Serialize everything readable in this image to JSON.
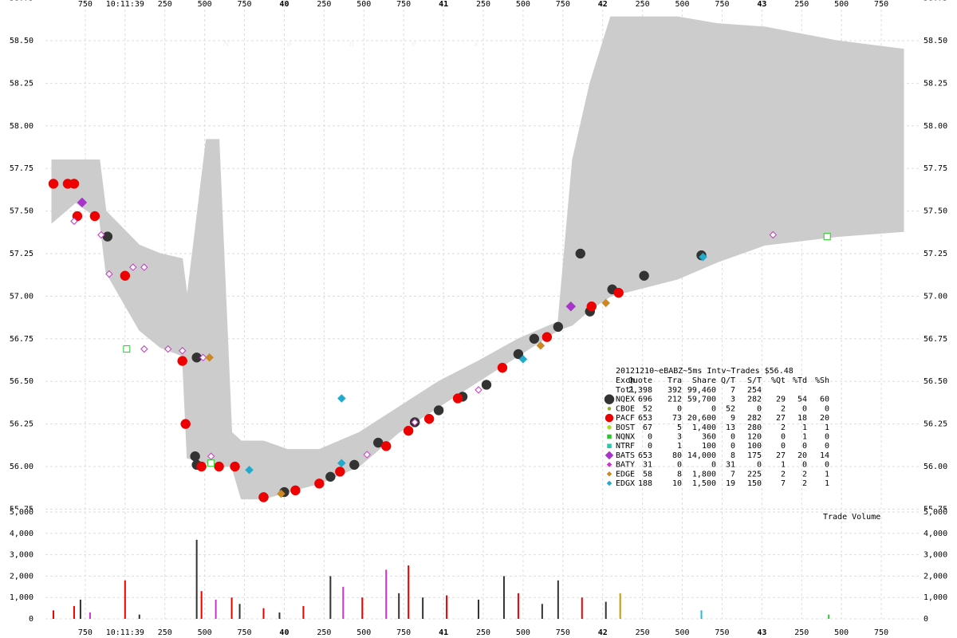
{
  "chart_data": [
    {
      "type": "scatter",
      "watermark": "Nanex",
      "xlim": [
        38.5,
        44.0
      ],
      "xticks": [
        {
          "value": 38.75,
          "label": "750"
        },
        {
          "value": 39,
          "label": "10:11:39"
        },
        {
          "value": 39.25,
          "label": "250"
        },
        {
          "value": 39.5,
          "label": "500"
        },
        {
          "value": 39.75,
          "label": "750"
        },
        40,
        {
          "value": 40.25,
          "label": "250"
        },
        {
          "value": 40.5,
          "label": "500"
        },
        {
          "value": 40.75,
          "label": "750"
        },
        41,
        {
          "value": 41.25,
          "label": "250"
        },
        {
          "value": 41.5,
          "label": "500"
        },
        {
          "value": 41.75,
          "label": "750"
        },
        42,
        {
          "value": 42.25,
          "label": "250"
        },
        {
          "value": 42.5,
          "label": "500"
        },
        {
          "value": 42.75,
          "label": "750"
        },
        43,
        {
          "value": 43.25,
          "label": "250"
        },
        {
          "value": 43.5,
          "label": "500"
        },
        {
          "value": 43.75,
          "label": "750"
        }
      ],
      "ylim": [
        55.75,
        58.75
      ],
      "yticks": [
        {
          "value": 55.75,
          "label": "55.75"
        },
        {
          "value": 56,
          "label": "56.00"
        },
        56.25,
        {
          "value": 56.5,
          "label": "56.50"
        },
        56.75,
        {
          "value": 57,
          "label": "57.00"
        },
        57.25,
        {
          "value": 57.5,
          "label": "57.50"
        },
        57.75,
        {
          "value": 58,
          "label": "58.00"
        },
        58.25,
        {
          "value": 58.5,
          "label": "58.50"
        },
        58.75
      ],
      "grid": true,
      "spread": {
        "color": "#cccccc",
        "x": [
          38.54,
          38.69,
          38.84,
          38.88,
          39.09,
          39.22,
          39.36,
          39.39,
          39.51,
          39.59,
          39.67,
          39.73,
          39.87,
          40.02,
          40.22,
          40.47,
          40.72,
          40.97,
          41.22,
          41.47,
          41.72,
          41.81,
          41.92,
          42.05,
          42.47,
          42.72,
          43.02,
          43.47,
          43.89
        ],
        "ask": [
          57.8,
          57.8,
          57.8,
          57.5,
          57.3,
          57.25,
          57.22,
          57.0,
          57.92,
          57.92,
          56.2,
          56.15,
          56.15,
          56.1,
          56.1,
          56.2,
          56.35,
          56.5,
          56.62,
          56.75,
          56.85,
          57.8,
          58.25,
          58.64,
          58.64,
          58.6,
          58.58,
          58.5,
          58.45
        ],
        "bid": [
          57.43,
          57.55,
          57.45,
          57.14,
          56.8,
          56.7,
          56.65,
          56.05,
          56.02,
          56.0,
          56.0,
          55.81,
          55.81,
          55.85,
          55.9,
          56.0,
          56.2,
          56.35,
          56.5,
          56.65,
          56.8,
          56.83,
          56.92,
          57.0,
          57.1,
          57.2,
          57.3,
          57.35,
          57.38
        ]
      },
      "series": [
        {
          "name": "NQEX",
          "color": "#333333",
          "shape": "circle",
          "size": 6,
          "x": [
            38.89,
            39.45,
            39.44,
            39.45,
            39.87,
            40.0,
            40.29,
            40.44,
            40.59,
            40.82,
            40.97,
            41.12,
            41.27,
            41.47,
            41.57,
            41.72,
            41.86,
            41.92,
            42.06,
            42.26,
            42.62
          ],
          "values": [
            57.35,
            56.64,
            56.06,
            56.01,
            55.82,
            55.85,
            55.94,
            56.01,
            56.14,
            56.26,
            56.33,
            56.41,
            56.48,
            56.66,
            56.75,
            56.82,
            57.25,
            56.91,
            57.04,
            57.12,
            57.24
          ]
        },
        {
          "name": "PACF",
          "color": "#ee0000",
          "shape": "circle",
          "size": 6,
          "x": [
            38.55,
            38.64,
            38.68,
            38.7,
            38.81,
            39.0,
            39.36,
            39.38,
            39.48,
            39.59,
            39.69,
            39.87,
            40.07,
            40.22,
            40.35,
            40.64,
            40.78,
            40.91,
            41.09,
            41.37,
            41.65,
            41.93,
            42.1
          ],
          "values": [
            57.66,
            57.66,
            57.66,
            57.47,
            57.47,
            57.12,
            56.62,
            56.25,
            56.0,
            56.0,
            56.0,
            55.82,
            55.86,
            55.9,
            55.97,
            56.12,
            56.21,
            56.28,
            56.4,
            56.58,
            56.76,
            56.94,
            57.02
          ]
        },
        {
          "name": "BATS",
          "color": "#aa33cc",
          "shape": "diamond",
          "size": 6,
          "x": [
            38.73,
            41.8
          ],
          "values": [
            57.55,
            56.94
          ]
        },
        {
          "name": "BATY",
          "color": "#cc33cc",
          "shape": "diamond",
          "size": 4,
          "hollow": true,
          "x": [
            38.68,
            38.85,
            38.9,
            39.05,
            39.12,
            39.12,
            39.27,
            39.36,
            39.49,
            39.54,
            40.52,
            40.82,
            41.22,
            43.07
          ],
          "values": [
            57.44,
            57.36,
            57.13,
            57.17,
            57.17,
            56.69,
            56.69,
            56.68,
            56.64,
            56.06,
            56.07,
            56.26,
            56.45,
            57.36
          ]
        },
        {
          "name": "EDGE",
          "color": "#cc8822",
          "shape": "diamond",
          "size": 5,
          "x": [
            39.53,
            39.98,
            41.61,
            42.02
          ],
          "values": [
            56.64,
            55.84,
            56.71,
            56.96
          ]
        },
        {
          "name": "EDGX",
          "color": "#22aacc",
          "shape": "diamond",
          "size": 5,
          "x": [
            39.78,
            40.36,
            40.36,
            41.5,
            42.63
          ],
          "values": [
            55.98,
            56.4,
            56.02,
            56.63,
            57.23
          ]
        },
        {
          "name": "NQNX",
          "color": "#22cc22",
          "shape": "square",
          "size": 4,
          "hollow": true,
          "x": [
            39.01,
            39.54,
            43.41
          ],
          "values": [
            56.69,
            56.02,
            57.35
          ]
        }
      ],
      "stats": {
        "title": "20121210~eBABZ~5ms Intv~Trades $56.48",
        "columns": [
          "Exch",
          "Quote",
          "Tra",
          "Share",
          "Q/T",
          "S/T",
          "%Qt",
          "%Td",
          "%Sh"
        ],
        "rows": [
          [
            "Totl",
            "2,398",
            "392",
            "99,460",
            "7",
            "254"
          ],
          [
            "NQEX",
            "696",
            "212",
            "59,700",
            "3",
            "282",
            "29",
            "54",
            "60"
          ],
          [
            "CBOE",
            "52",
            "0",
            "0",
            "52",
            "0",
            "2",
            "0",
            "0"
          ],
          [
            "PACF",
            "653",
            "73",
            "20,600",
            "9",
            "282",
            "27",
            "18",
            "20"
          ],
          [
            "BOST",
            "67",
            "5",
            "1,400",
            "13",
            "280",
            "2",
            "1",
            "1"
          ],
          [
            "NQNX",
            "0",
            "3",
            "360",
            "0",
            "120",
            "0",
            "1",
            "0"
          ],
          [
            "NTRF",
            "0",
            "1",
            "100",
            "0",
            "100",
            "0",
            "0",
            "0"
          ],
          [
            "BATS",
            "653",
            "80",
            "14,000",
            "8",
            "175",
            "27",
            "20",
            "14"
          ],
          [
            "BATY",
            "31",
            "0",
            "0",
            "31",
            "0",
            "1",
            "0",
            "0"
          ],
          [
            "EDGE",
            "58",
            "8",
            "1,800",
            "7",
            "225",
            "2",
            "2",
            "1"
          ],
          [
            "EDGX",
            "188",
            "10",
            "1,500",
            "19",
            "150",
            "7",
            "2",
            "1"
          ]
        ],
        "markers": [
          null,
          {
            "color": "#333333",
            "shape": "circle",
            "size": 6
          },
          {
            "color": "#88aa22",
            "shape": "circle",
            "size": 2
          },
          {
            "color": "#ee0000",
            "shape": "circle",
            "size": 5
          },
          {
            "color": "#aadd22",
            "shape": "circle",
            "size": 2.5
          },
          {
            "color": "#22cc22",
            "shape": "square",
            "size": 2.5
          },
          {
            "color": "#22ccaa",
            "shape": "square",
            "size": 2.5
          },
          {
            "color": "#aa33cc",
            "shape": "diamond",
            "size": 5
          },
          {
            "color": "#cc33cc",
            "shape": "diamond",
            "size": 3
          },
          {
            "color": "#cc8822",
            "shape": "diamond",
            "size": 3
          },
          {
            "color": "#22aacc",
            "shape": "diamond",
            "size": 3
          }
        ]
      }
    },
    {
      "type": "bar",
      "title": "Trade Volume",
      "xlim": [
        38.5,
        44.0
      ],
      "xticks": [
        {
          "value": 38.75,
          "label": "750"
        },
        {
          "value": 39,
          "label": "10:11:39"
        },
        {
          "value": 39.25,
          "label": "250"
        },
        {
          "value": 39.5,
          "label": "500"
        },
        {
          "value": 39.75,
          "label": "750"
        },
        40,
        {
          "value": 40.25,
          "label": "250"
        },
        {
          "value": 40.5,
          "label": "500"
        },
        {
          "value": 40.75,
          "label": "750"
        },
        41,
        {
          "value": 41.25,
          "label": "250"
        },
        {
          "value": 41.5,
          "label": "500"
        },
        {
          "value": 41.75,
          "label": "750"
        },
        42,
        {
          "value": 42.25,
          "label": "250"
        },
        {
          "value": 42.5,
          "label": "500"
        },
        {
          "value": 42.75,
          "label": "750"
        },
        43,
        {
          "value": 43.25,
          "label": "250"
        },
        {
          "value": 43.5,
          "label": "500"
        },
        {
          "value": 43.75,
          "label": "750"
        }
      ],
      "ylim": [
        0,
        5000
      ],
      "yticks": [
        0,
        {
          "value": 1000,
          "label": "1,000"
        },
        {
          "value": 2000,
          "label": "2,000"
        },
        {
          "value": 3000,
          "label": "3,000"
        },
        {
          "value": 4000,
          "label": "4,000"
        },
        {
          "value": 5000,
          "label": "5,000"
        }
      ],
      "grid": true,
      "x": [
        38.55,
        38.68,
        38.72,
        38.78,
        39.0,
        39.09,
        39.45,
        39.48,
        39.57,
        39.67,
        39.72,
        39.87,
        39.97,
        40.12,
        40.29,
        40.37,
        40.49,
        40.64,
        40.72,
        40.78,
        40.87,
        41.02,
        41.22,
        41.38,
        41.47,
        41.62,
        41.72,
        41.87,
        42.02,
        42.11,
        42.62,
        43.42
      ],
      "values": [
        400,
        600,
        900,
        300,
        1800,
        200,
        3700,
        1300,
        900,
        1000,
        700,
        500,
        300,
        600,
        2000,
        1500,
        1000,
        2300,
        1200,
        2500,
        1000,
        1100,
        900,
        2000,
        1200,
        700,
        1800,
        1000,
        800,
        1200,
        400,
        200
      ],
      "colors": [
        "#ee0000",
        "#ee0000",
        "#333333",
        "#cc33cc",
        "#ee0000",
        "#333333",
        "#333333",
        "#ee0000",
        "#cc33cc",
        "#ee0000",
        "#333333",
        "#ee0000",
        "#333333",
        "#ee0000",
        "#333333",
        "#cc33cc",
        "#ee0000",
        "#cc33cc",
        "#333333",
        "#ee0000",
        "#333333",
        "#ee0000",
        "#333333",
        "#333333",
        "#ee0000",
        "#333333",
        "#333333",
        "#ee0000",
        "#333333",
        "#cc9900",
        "#22bbdd",
        "#22cc22"
      ]
    }
  ]
}
